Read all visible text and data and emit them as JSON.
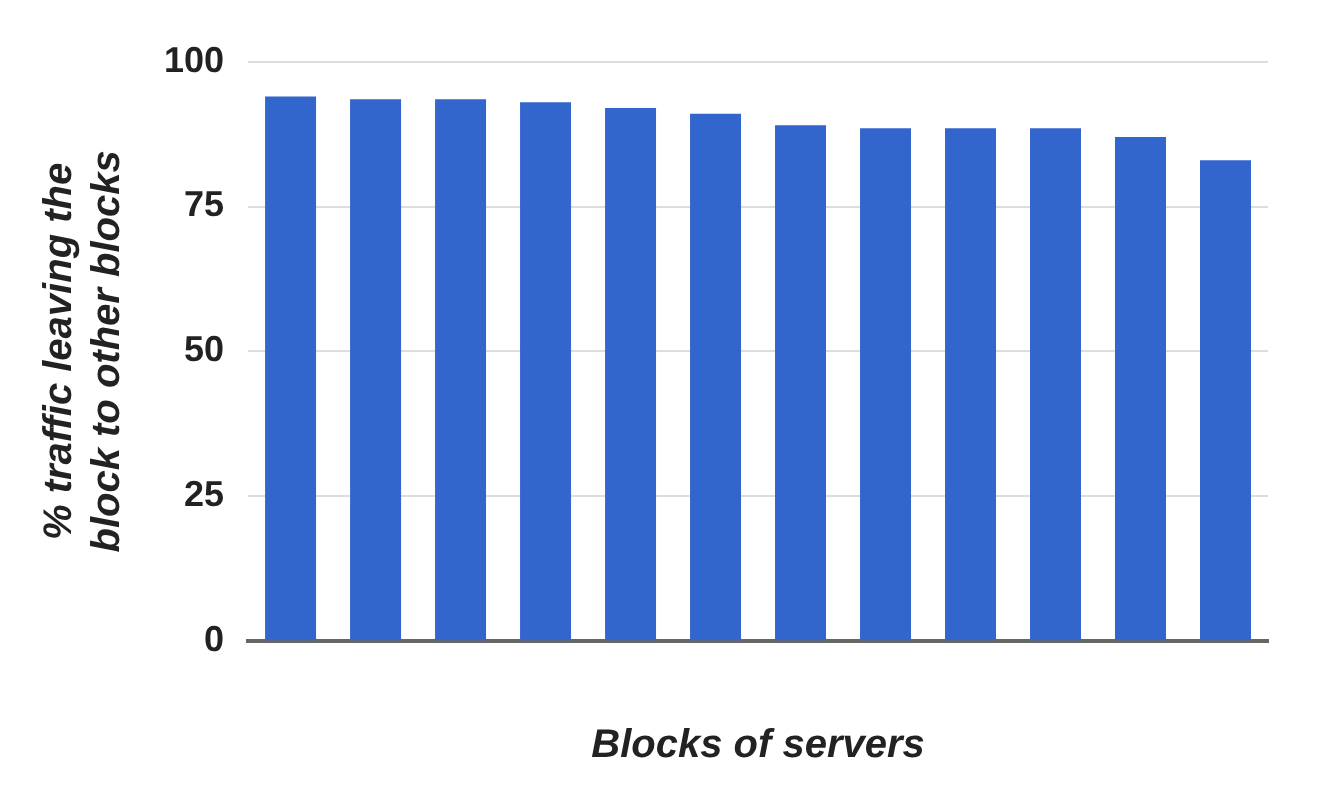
{
  "chart_data": {
    "type": "bar",
    "xlabel": "Blocks of servers",
    "ylabel": "% traffic leaving the\nblock to other blocks",
    "categories": [
      null,
      null,
      null,
      null,
      null,
      null,
      null,
      null,
      null,
      null,
      null,
      null
    ],
    "values": [
      94,
      93.5,
      93.5,
      93,
      92,
      91,
      89,
      88.5,
      88.5,
      88.5,
      87,
      83
    ],
    "color": "#3366cc",
    "ylim": [
      0,
      100
    ],
    "yticks": [
      0,
      25,
      50,
      75,
      100
    ],
    "grid": "y"
  }
}
